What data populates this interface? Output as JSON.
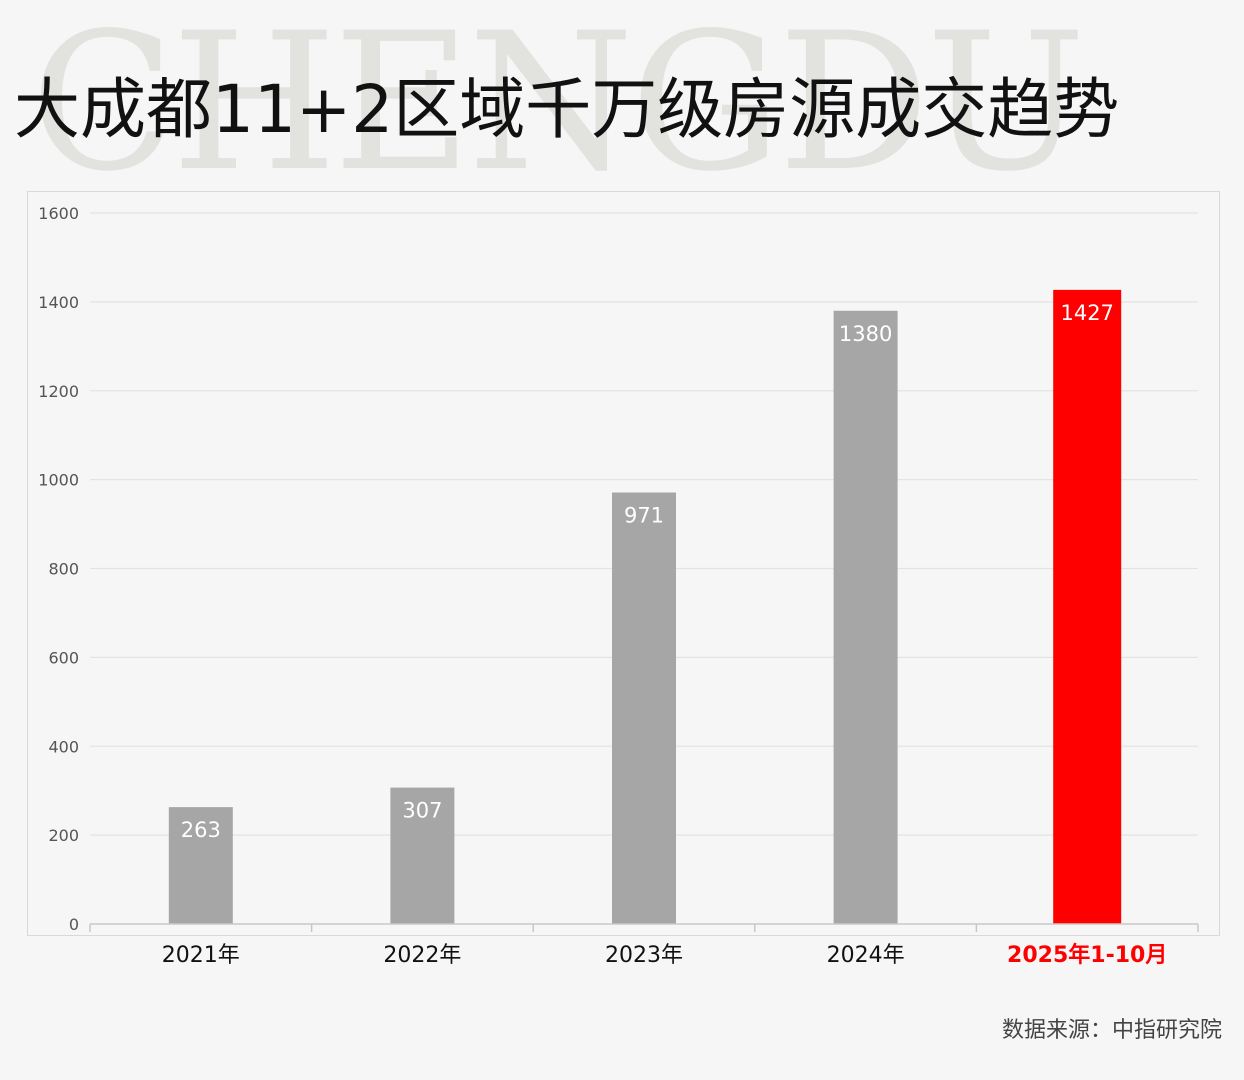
{
  "watermark": "CHENGDU",
  "title": "大成都11+2区域千万级房源成交趋势",
  "source": "数据来源：中指研究院",
  "colors": {
    "bar": "#a6a6a6",
    "highlight": "#ff0000",
    "grid": "#e3e3e3"
  },
  "chart_data": {
    "type": "bar",
    "title": "大成都11+2区域千万级房源成交趋势",
    "categories": [
      "2021年",
      "2022年",
      "2023年",
      "2024年",
      "2025年1-10月"
    ],
    "values": [
      263,
      307,
      971,
      1380,
      1427
    ],
    "highlight_index": 4,
    "ylim": [
      0,
      1600
    ],
    "yticks": [
      0,
      200,
      400,
      600,
      800,
      1000,
      1200,
      1400,
      1600
    ],
    "grid": true,
    "legend": "none",
    "data_labels": true
  }
}
